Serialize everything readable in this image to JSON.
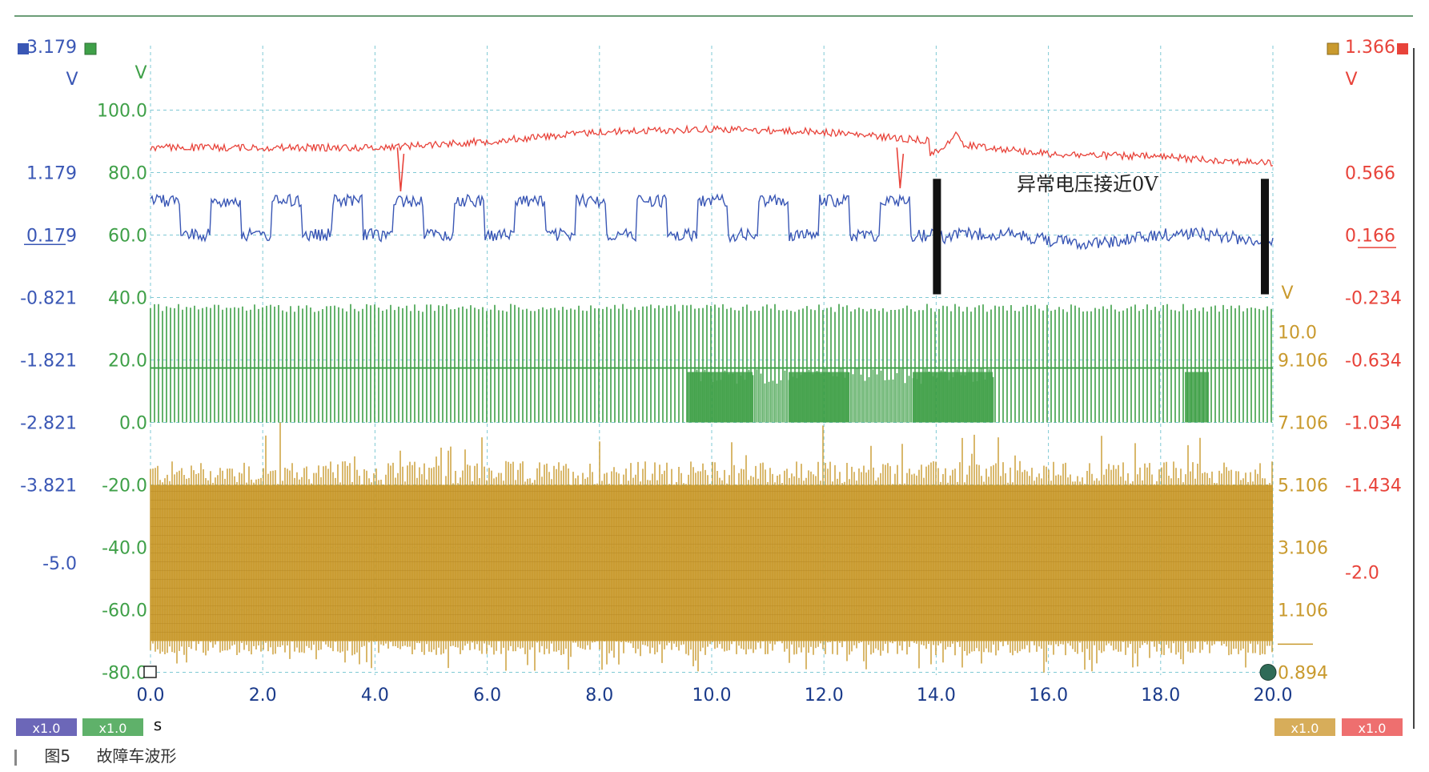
{
  "chart_data": {
    "type": "line",
    "x_axis": {
      "unit": "s",
      "ticks": [
        "0.0",
        "2.0",
        "4.0",
        "6.0",
        "8.0",
        "10.0",
        "12.0",
        "14.0",
        "16.0",
        "18.0",
        "20.0"
      ],
      "range": [
        0,
        20
      ]
    },
    "left_axes": {
      "blue": {
        "unit": "V",
        "top_value": "3.179",
        "ticks": [
          "1.179",
          "0.179",
          "-0.821",
          "-1.821",
          "-2.821",
          "-3.821",
          "-5.0"
        ],
        "color": "#3a57b5"
      },
      "green": {
        "unit": "V",
        "ticks": [
          "100.0",
          "80.0",
          "60.0",
          "40.0",
          "20.0",
          "0.0",
          "-20.0",
          "-40.0",
          "-60.0",
          "-80.0"
        ],
        "color": "#3fa048"
      }
    },
    "right_axes": {
      "orange": {
        "unit": "V",
        "ticks": [
          "10.0",
          "9.106",
          "7.106",
          "5.106",
          "3.106",
          "1.106",
          "0.894"
        ],
        "color": "#c99a2e"
      },
      "red": {
        "unit": "V",
        "top_value": "1.366",
        "ticks": [
          "0.566",
          "0.166",
          "-0.234",
          "-0.634",
          "-1.034",
          "-1.434",
          "-2.0"
        ],
        "color": "#e8433a"
      }
    },
    "series": [
      {
        "color": "#e8433a",
        "grid_y": [
          88,
          88,
          88,
          90,
          93,
          94,
          93,
          90,
          86,
          85,
          83
        ],
        "spikes": [
          {
            "x": 4.4,
            "y": 74
          },
          {
            "x": 13.3,
            "y": 75
          }
        ]
      },
      {
        "color": "#3a57b5",
        "grid_y": [
          61,
          73,
          60,
          71,
          60,
          71,
          63,
          71,
          60,
          60,
          59
        ],
        "drop_at": 14.0
      },
      {
        "color": "#3fa048",
        "band_grid_y": [
          40,
          0
        ]
      },
      {
        "color": "#c99a2e",
        "band_grid_y": [
          -20,
          -70
        ]
      }
    ],
    "annotation": "异常电压接近0V",
    "markers": [
      {
        "x": 14.0
      },
      {
        "x": 20.0
      }
    ],
    "multipliers": {
      "left": [
        "x1.0",
        "x1.0"
      ],
      "right": [
        "x1.0",
        "x1.0"
      ]
    }
  },
  "caption": {
    "label": "图5",
    "text": "故障车波形"
  }
}
